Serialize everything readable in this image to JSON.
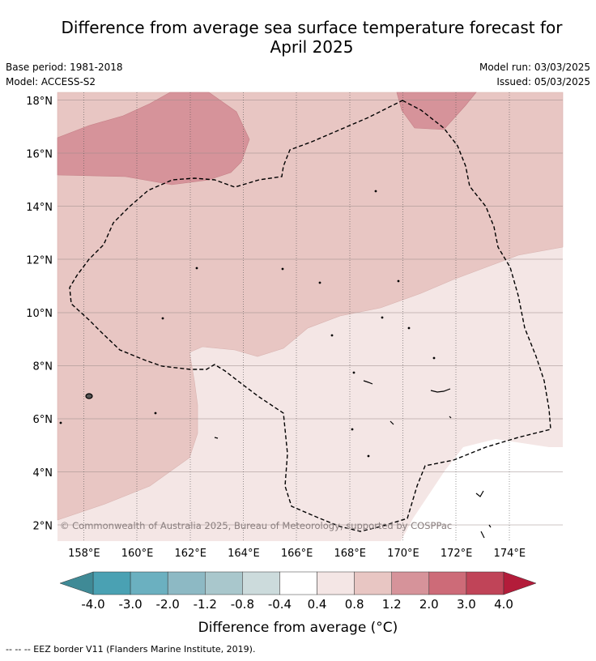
{
  "title_line1": "Difference from average sea surface temperature forecast for",
  "title_line2": "April 2025",
  "base_period": "Base period: 1981-2018",
  "model": "Model: ACCESS-S2",
  "model_run": "Model run: 03/03/2025",
  "issued": "Issued: 05/03/2025",
  "copyright": "© Commonwealth of Australia 2025, Bureau of Meteorology, supported by COSPPac",
  "map": {
    "lon_min": 157.0,
    "lon_max": 176.0,
    "lat_min": 1.4,
    "lat_max": 18.3,
    "lat_ticks": [
      {
        "value": 18,
        "label": "18°N"
      },
      {
        "value": 16,
        "label": "16°N"
      },
      {
        "value": 14,
        "label": "14°N"
      },
      {
        "value": 12,
        "label": "12°N"
      },
      {
        "value": 10,
        "label": "10°N"
      },
      {
        "value": 8,
        "label": "8°N"
      },
      {
        "value": 6,
        "label": "6°N"
      },
      {
        "value": 4,
        "label": "4°N"
      },
      {
        "value": 2,
        "label": "2°N"
      }
    ],
    "lon_ticks": [
      {
        "value": 158,
        "label": "158°E"
      },
      {
        "value": 160,
        "label": "160°E"
      },
      {
        "value": 162,
        "label": "162°E"
      },
      {
        "value": 164,
        "label": "164°E"
      },
      {
        "value": 166,
        "label": "166°E"
      },
      {
        "value": 168,
        "label": "168°E"
      },
      {
        "value": 170,
        "label": "170°E"
      },
      {
        "value": 172,
        "label": "172°E"
      },
      {
        "value": 174,
        "label": "174°E"
      }
    ]
  },
  "colorbar": {
    "labels": [
      "-4.0",
      "-3.0",
      "-2.0",
      "-1.2",
      "-0.8",
      "-0.4",
      "0.4",
      "0.8",
      "1.2",
      "2.0",
      "3.0",
      "4.0"
    ],
    "colors": [
      "#4aa1b3",
      "#6bb0c0",
      "#8db9c4",
      "#a9c7cc",
      "#ccdbdc",
      "#ffffff",
      "#f4e6e5",
      "#e8c6c3",
      "#d6939a",
      "#cd6b78",
      "#c04458"
    ],
    "low_extend_color": "#3f8a96",
    "high_extend_color": "#b31c3a",
    "label": "Difference from average (°C)"
  },
  "legend_note": "--  --  -- EEZ border V11 (Flanders Marine Institute, 2019)."
}
